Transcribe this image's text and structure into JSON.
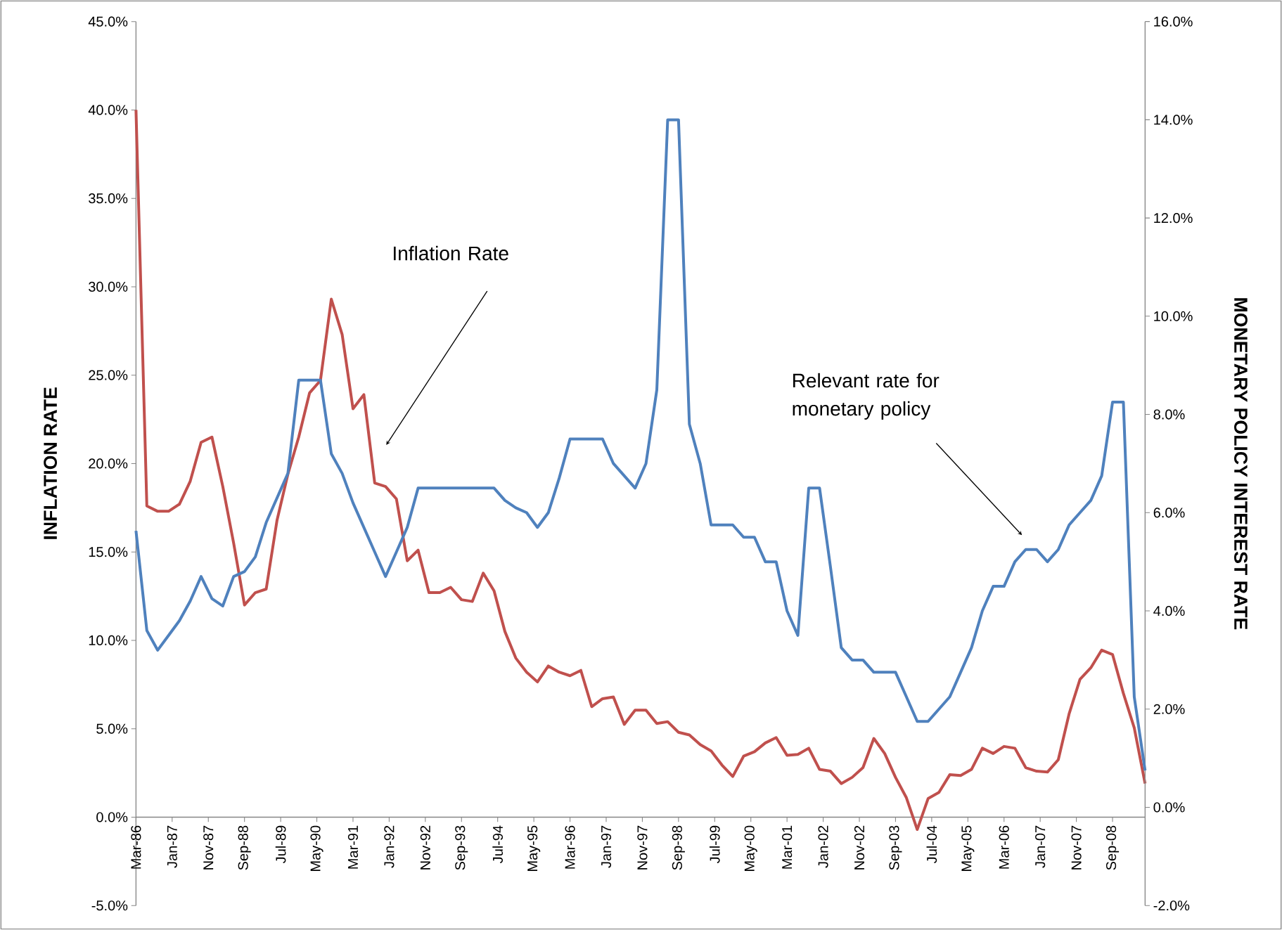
{
  "chart_data": {
    "type": "line",
    "ylabel": "INFLATION RATE",
    "y2label": "MONETARY POLICY INTEREST RATE",
    "x": [
      "1986-03",
      "1986-06",
      "1986-09",
      "1986-12",
      "1987-03",
      "1987-06",
      "1987-09",
      "1987-12",
      "1988-03",
      "1988-06",
      "1988-09",
      "1988-12",
      "1989-03",
      "1989-06",
      "1989-09",
      "1989-12",
      "1990-03",
      "1990-06",
      "1990-09",
      "1990-12",
      "1991-03",
      "1991-06",
      "1991-09",
      "1991-12",
      "1992-03",
      "1992-06",
      "1992-09",
      "1992-12",
      "1993-03",
      "1993-06",
      "1993-09",
      "1993-12",
      "1994-03",
      "1994-06",
      "1994-09",
      "1994-12",
      "1995-03",
      "1995-06",
      "1995-09",
      "1995-12",
      "1996-03",
      "1996-06",
      "1996-09",
      "1996-12",
      "1997-03",
      "1997-06",
      "1997-09",
      "1997-12",
      "1998-03",
      "1998-06",
      "1998-09",
      "1998-12",
      "1999-03",
      "1999-06",
      "1999-09",
      "1999-12",
      "2000-03",
      "2000-06",
      "2000-09",
      "2000-12",
      "2001-03",
      "2001-06",
      "2001-09",
      "2001-12",
      "2002-03",
      "2002-06",
      "2002-09",
      "2002-12",
      "2003-03",
      "2003-06",
      "2003-09",
      "2003-12",
      "2004-03",
      "2004-06",
      "2004-09",
      "2004-12",
      "2005-03",
      "2005-06",
      "2005-09",
      "2005-12",
      "2006-03",
      "2006-06",
      "2006-09",
      "2006-12",
      "2007-03",
      "2007-06",
      "2007-09",
      "2007-12",
      "2008-03",
      "2008-06",
      "2008-09",
      "2008-12",
      "2009-03",
      "2009-06"
    ],
    "series": [
      {
        "color": "#c0504d",
        "values": [
          40.0,
          17.6,
          17.3,
          17.3,
          17.7,
          19.0,
          21.2,
          21.5,
          18.7,
          15.5,
          12.0,
          12.7,
          12.9,
          16.8,
          19.4,
          21.5,
          24.0,
          24.7,
          29.3,
          27.3,
          23.1,
          23.9,
          18.9,
          18.7,
          18.0,
          14.5,
          15.1,
          12.7,
          12.7,
          13.0,
          12.3,
          12.2,
          13.8,
          12.8,
          10.5,
          9.0,
          8.2,
          7.65,
          8.55,
          8.2,
          8.0,
          8.3,
          6.25,
          6.7,
          6.8,
          5.25,
          6.05,
          6.05,
          5.3,
          5.4,
          4.8,
          4.65,
          4.1,
          3.75,
          2.95,
          2.3,
          3.45,
          3.7,
          4.2,
          4.5,
          3.5,
          3.55,
          3.9,
          2.7,
          2.6,
          1.9,
          2.25,
          2.8,
          4.45,
          3.6,
          2.25,
          1.1,
          -0.7,
          1.05,
          1.4,
          2.4,
          2.35,
          2.7,
          3.9,
          3.6,
          4.0,
          3.9,
          2.8,
          2.6,
          2.55,
          3.25,
          5.85,
          7.8,
          8.45,
          9.45,
          9.2,
          7.0,
          5.05,
          1.9
        ]
      },
      {
        "color": "#4f81bd",
        "axis": "y2",
        "values": [
          5.63,
          3.6,
          3.2,
          3.5,
          3.8,
          4.2,
          4.7,
          4.25,
          4.1,
          4.7,
          4.8,
          5.1,
          5.8,
          6.3,
          6.8,
          8.7,
          8.7,
          8.7,
          7.2,
          6.8,
          6.2,
          5.7,
          5.2,
          4.7,
          5.2,
          5.7,
          6.5,
          6.5,
          6.5,
          6.5,
          6.5,
          6.5,
          6.5,
          6.5,
          6.25,
          6.1,
          6.0,
          5.7,
          6.0,
          6.7,
          7.5,
          7.5,
          7.5,
          7.5,
          7.0,
          6.75,
          6.5,
          7.0,
          8.5,
          14.0,
          14.0,
          7.8,
          7.0,
          5.75,
          5.75,
          5.75,
          5.5,
          5.5,
          5.0,
          5.0,
          4.0,
          3.5,
          6.5,
          6.5,
          4.9,
          3.25,
          3.0,
          3.0,
          2.75,
          2.75,
          2.75,
          2.25,
          1.75,
          1.75,
          2.0,
          2.25,
          2.75,
          3.25,
          4.0,
          4.5,
          4.5,
          5.0,
          5.25,
          5.25,
          5.0,
          5.25,
          5.75,
          6.0,
          6.25,
          6.75,
          8.25,
          8.25,
          2.25,
          0.75
        ]
      }
    ],
    "xlim": [
      "1986-03",
      "2009-06"
    ],
    "xticks": [
      {
        "value": "1986-03",
        "label": "Mar-86"
      },
      {
        "value": "1987-01",
        "label": "Jan-87"
      },
      {
        "value": "1987-11",
        "label": "Nov-87"
      },
      {
        "value": "1988-09",
        "label": "Sep-88"
      },
      {
        "value": "1989-07",
        "label": "Jul-89"
      },
      {
        "value": "1990-05",
        "label": "May-90"
      },
      {
        "value": "1991-03",
        "label": "Mar-91"
      },
      {
        "value": "1992-01",
        "label": "Jan-92"
      },
      {
        "value": "1992-11",
        "label": "Nov-92"
      },
      {
        "value": "1993-09",
        "label": "Sep-93"
      },
      {
        "value": "1994-07",
        "label": "Jul-94"
      },
      {
        "value": "1995-05",
        "label": "May-95"
      },
      {
        "value": "1996-03",
        "label": "Mar-96"
      },
      {
        "value": "1997-01",
        "label": "Jan-97"
      },
      {
        "value": "1997-11",
        "label": "Nov-97"
      },
      {
        "value": "1998-09",
        "label": "Sep-98"
      },
      {
        "value": "1999-07",
        "label": "Jul-99"
      },
      {
        "value": "2000-05",
        "label": "May-00"
      },
      {
        "value": "2001-03",
        "label": "Mar-01"
      },
      {
        "value": "2002-01",
        "label": "Jan-02"
      },
      {
        "value": "2002-11",
        "label": "Nov-02"
      },
      {
        "value": "2003-09",
        "label": "Sep-03"
      },
      {
        "value": "2004-07",
        "label": "Jul-04"
      },
      {
        "value": "2005-05",
        "label": "May-05"
      },
      {
        "value": "2006-03",
        "label": "Mar-06"
      },
      {
        "value": "2007-01",
        "label": "Jan-07"
      },
      {
        "value": "2007-11",
        "label": "Nov-07"
      },
      {
        "value": "2008-09",
        "label": "Sep-08"
      }
    ],
    "ylim": [
      -5,
      45
    ],
    "yticks": [
      {
        "value": -5,
        "label": "-5.0%"
      },
      {
        "value": 0,
        "label": "0.0%"
      },
      {
        "value": 5,
        "label": "5.0%"
      },
      {
        "value": 10,
        "label": "10.0%"
      },
      {
        "value": 15,
        "label": "15.0%"
      },
      {
        "value": 20,
        "label": "20.0%"
      },
      {
        "value": 25,
        "label": "25.0%"
      },
      {
        "value": 30,
        "label": "30.0%"
      },
      {
        "value": 35,
        "label": "35.0%"
      },
      {
        "value": 40,
        "label": "40.0%"
      },
      {
        "value": 45,
        "label": "45.0%"
      }
    ],
    "y2lim": [
      -2,
      16
    ],
    "y2ticks": [
      {
        "value": -2,
        "label": "-2.0%"
      },
      {
        "value": 0,
        "label": "0.0%"
      },
      {
        "value": 2,
        "label": "2.0%"
      },
      {
        "value": 4,
        "label": "4.0%"
      },
      {
        "value": 6,
        "label": "6.0%"
      },
      {
        "value": 8,
        "label": "8.0%"
      },
      {
        "value": 10,
        "label": "10.0%"
      },
      {
        "value": 12,
        "label": "12.0%"
      },
      {
        "value": 14,
        "label": "14.0%"
      },
      {
        "value": 16,
        "label": "16.0%"
      }
    ],
    "annotations": [
      "Inflation Rate",
      "Relevant rate for monetary policy"
    ]
  }
}
